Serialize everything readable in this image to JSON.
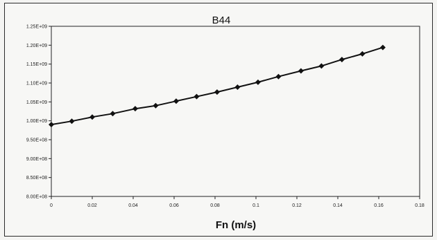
{
  "chart_data": {
    "type": "line",
    "title": "B44",
    "xlabel": "Fn (m/s)",
    "ylabel": "",
    "xlim": [
      0,
      0.18
    ],
    "ylim": [
      800000000,
      1250000000
    ],
    "x_ticks": [
      "0",
      "0.02",
      "0.04",
      "0.06",
      "0.08",
      "0.1",
      "0.12",
      "0.14",
      "0.16",
      "0.18"
    ],
    "y_ticks": [
      "8.00E+08",
      "8.50E+08",
      "9.00E+08",
      "9.50E+08",
      "1.00E+09",
      "1.05E+09",
      "1.10E+09",
      "1.15E+09",
      "1.20E+09",
      "1.25E+09"
    ],
    "grid": false,
    "legend": "none",
    "series": [
      {
        "marker": "diamond",
        "color": "#111111",
        "x": [
          0,
          0.01,
          0.02,
          0.03,
          0.041,
          0.051,
          0.061,
          0.071,
          0.081,
          0.091,
          0.101,
          0.111,
          0.122,
          0.132,
          0.142,
          0.152,
          0.162
        ],
        "y": [
          990000000,
          999000000,
          1010000000,
          1019000000,
          1032000000,
          1040000000,
          1052000000,
          1064000000,
          1076000000,
          1089000000,
          1102000000,
          1117000000,
          1132000000,
          1145000000,
          1162000000,
          1177000000,
          1194000000
        ]
      }
    ]
  }
}
